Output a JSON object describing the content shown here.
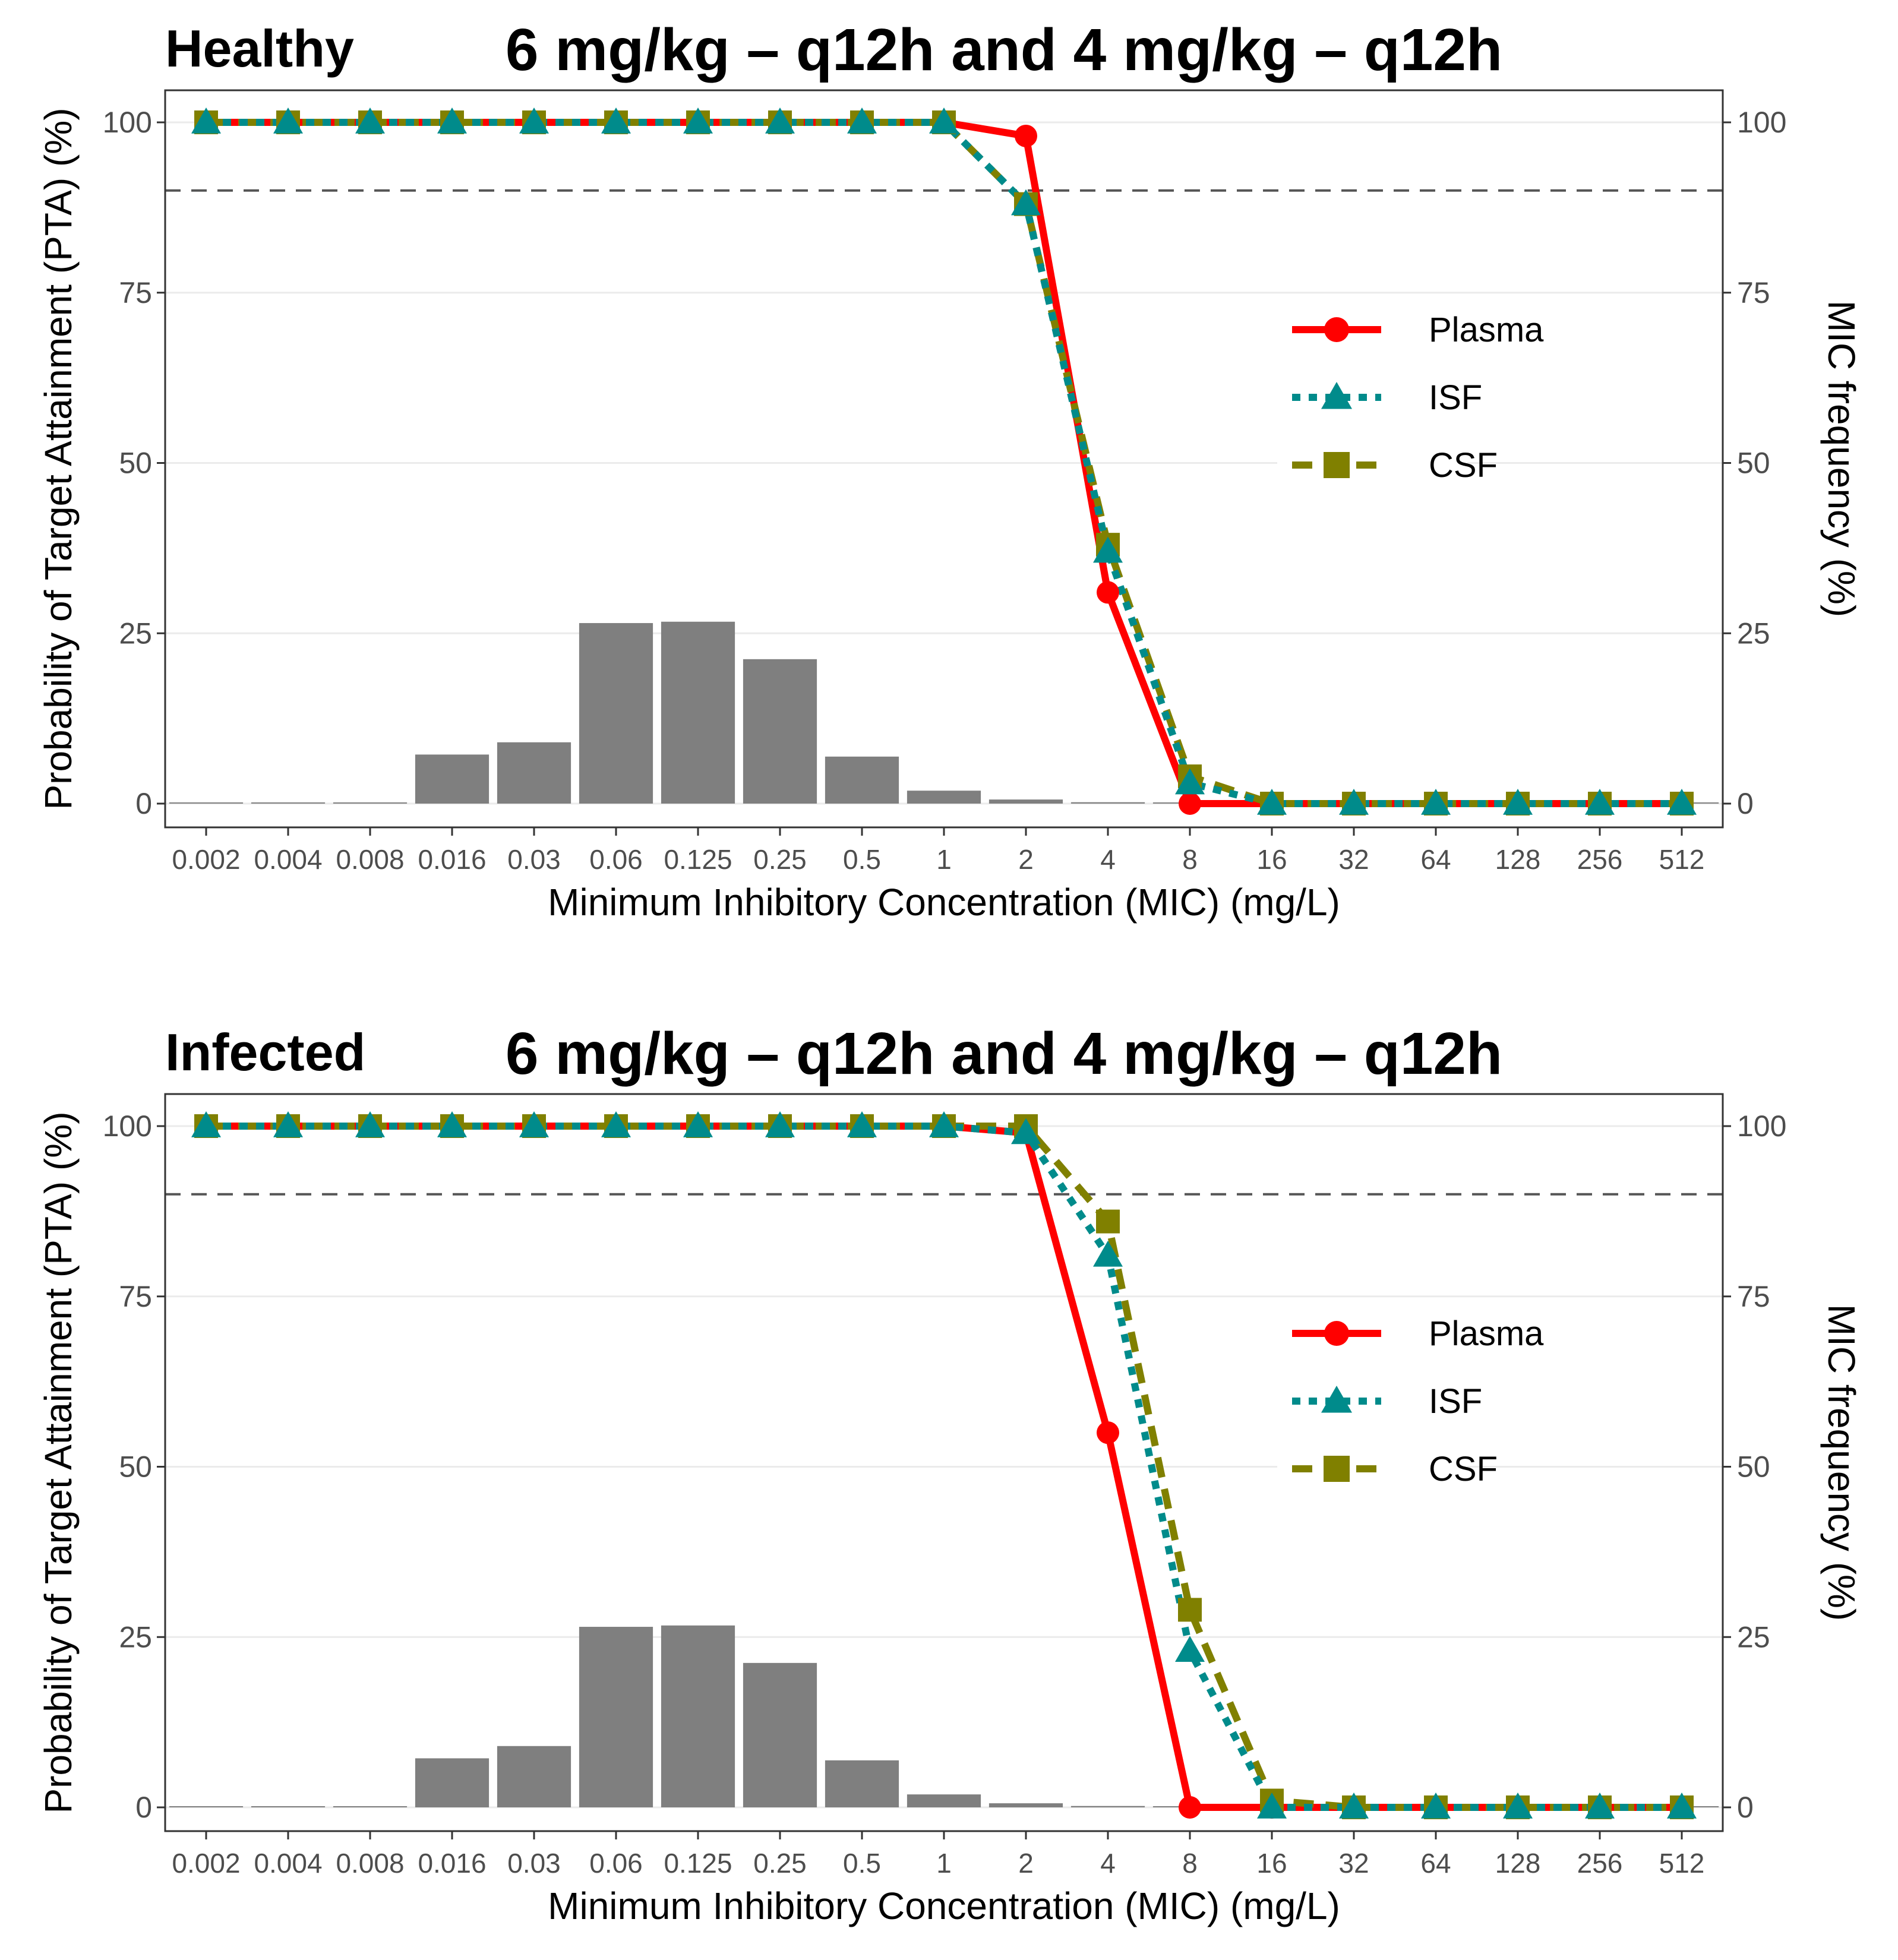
{
  "chart_data": [
    {
      "type": "bar+line",
      "group_label": "Healthy",
      "title": "6 mg/kg – q12h and 4 mg/kg – q12h",
      "xlabel": "Minimum Inhibitory Concentration (MIC) (mg/L)",
      "ylabel": "Probability of Target Attainment (PTA) (%)",
      "y2label": "MIC frequency (%)",
      "ylim": [
        0,
        100
      ],
      "yticks": [
        "0",
        "25",
        "50",
        "75",
        "100"
      ],
      "threshold": 90,
      "categories": [
        "0.002",
        "0.004",
        "0.008",
        "0.016",
        "0.03",
        "0.06",
        "0.125",
        "0.25",
        "0.5",
        "1",
        "2",
        "4",
        "8",
        "16",
        "32",
        "64",
        "128",
        "256",
        "512"
      ],
      "mic_frequency": [
        0,
        0,
        0,
        7.2,
        9.0,
        26.5,
        26.7,
        21.2,
        6.9,
        1.9,
        0.6,
        0.2,
        0,
        0,
        0,
        0,
        0,
        0,
        0
      ],
      "legend_position": "right",
      "series": [
        {
          "name": "Plasma",
          "color": "#ff0000",
          "marker": "circle",
          "dash": "solid",
          "values": [
            100,
            100,
            100,
            100,
            100,
            100,
            100,
            100,
            100,
            100,
            98,
            31,
            0,
            0,
            0,
            0,
            0,
            0,
            0
          ]
        },
        {
          "name": "ISF",
          "color": "#008b8b",
          "marker": "triangle",
          "dash": "dotted",
          "values": [
            100,
            100,
            100,
            100,
            100,
            100,
            100,
            100,
            100,
            100,
            88,
            37,
            3,
            0,
            0,
            0,
            0,
            0,
            0
          ]
        },
        {
          "name": "CSF",
          "color": "#808000",
          "marker": "square",
          "dash": "dashed",
          "values": [
            100,
            100,
            100,
            100,
            100,
            100,
            100,
            100,
            100,
            100,
            88,
            38,
            4,
            0,
            0,
            0,
            0,
            0,
            0
          ]
        }
      ]
    },
    {
      "type": "bar+line",
      "group_label": "Infected",
      "title": "6 mg/kg – q12h and 4 mg/kg – q12h",
      "xlabel": "Minimum Inhibitory Concentration (MIC) (mg/L)",
      "ylabel": "Probability of Target Attainment (PTA) (%)",
      "y2label": "MIC frequency (%)",
      "ylim": [
        0,
        100
      ],
      "yticks": [
        "0",
        "25",
        "50",
        "75",
        "100"
      ],
      "threshold": 90,
      "categories": [
        "0.002",
        "0.004",
        "0.008",
        "0.016",
        "0.03",
        "0.06",
        "0.125",
        "0.25",
        "0.5",
        "1",
        "2",
        "4",
        "8",
        "16",
        "32",
        "64",
        "128",
        "256",
        "512"
      ],
      "mic_frequency": [
        0,
        0,
        0,
        7.2,
        9.0,
        26.5,
        26.7,
        21.2,
        6.9,
        1.9,
        0.6,
        0.2,
        0,
        0,
        0,
        0,
        0,
        0,
        0
      ],
      "legend_position": "right",
      "series": [
        {
          "name": "Plasma",
          "color": "#ff0000",
          "marker": "circle",
          "dash": "solid",
          "values": [
            100,
            100,
            100,
            100,
            100,
            100,
            100,
            100,
            100,
            100,
            99,
            55,
            0,
            0,
            0,
            0,
            0,
            0,
            0
          ]
        },
        {
          "name": "ISF",
          "color": "#008b8b",
          "marker": "triangle",
          "dash": "dotted",
          "values": [
            100,
            100,
            100,
            100,
            100,
            100,
            100,
            100,
            100,
            100,
            99,
            81,
            23,
            0,
            0,
            0,
            0,
            0,
            0
          ]
        },
        {
          "name": "CSF",
          "color": "#808000",
          "marker": "square",
          "dash": "dashed",
          "values": [
            100,
            100,
            100,
            100,
            100,
            100,
            100,
            100,
            100,
            100,
            100,
            86,
            29,
            1,
            0,
            0,
            0,
            0,
            0
          ]
        }
      ]
    }
  ]
}
